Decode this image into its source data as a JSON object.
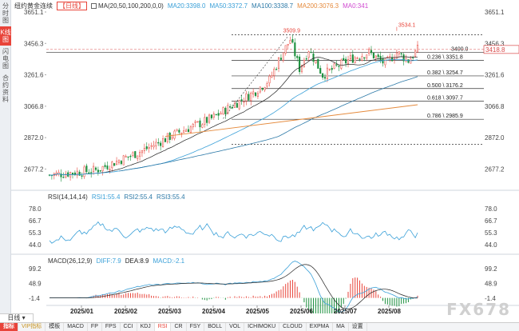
{
  "sidebar": {
    "tabs": [
      {
        "label": "分时图",
        "active": false
      },
      {
        "label": "K线图",
        "active": true
      },
      {
        "label": "闪电图",
        "active": false
      },
      {
        "label": "合约资料",
        "active": false
      }
    ]
  },
  "header": {
    "instrument": "纽约黄金连续",
    "timeframe": "日线",
    "ma_label": "MA(20,50,100,200,0,0)",
    "ma20": "MA20:3398.0",
    "ma50": "MA50:3372.7",
    "ma100": "MA100:3338.7",
    "ma200": "MA200:3076.3",
    "ma0": "MA0:341"
  },
  "colors": {
    "up": "#e8443a",
    "down": "#1a8f3c",
    "ma20": "#222222",
    "ma50": "#3aa0d8",
    "ma100": "#2e7aa8",
    "ma200": "#e58a3c",
    "ma0": "#d04ad0",
    "rsi1": "#3aa0d8",
    "rsi2": "#2e7aa8",
    "rsi3": "#2e7aa8",
    "dif": "#3aa0d8",
    "dea": "#222222",
    "price_tag": "#d94a4a",
    "fib_line": "#333333"
  },
  "price_axis": {
    "labels": [
      "3651.1",
      "3456.3",
      "3261.6",
      "3066.8",
      "2872.0",
      "2677.2"
    ],
    "current_price": "3418.8"
  },
  "annotations": {
    "high1": "3509.9",
    "high2": "3534.1",
    "level_3400": "3400.0"
  },
  "fib_levels": [
    {
      "ratio": "0.236",
      "price": "3351.8",
      "label": "0.236 \\ 3351.8"
    },
    {
      "ratio": "0.382",
      "price": "3254.7",
      "label": "0.382 \\ 3254.7"
    },
    {
      "ratio": "0.500",
      "price": "3176.2",
      "label": "0.500 \\ 3176.2"
    },
    {
      "ratio": "0.618",
      "price": "3097.7",
      "label": "0.618 \\ 3097.7"
    },
    {
      "ratio": "0.786",
      "price": "2985.9",
      "label": "0.786 \\ 2985.9"
    }
  ],
  "rsi": {
    "label": "RSI(14,14,14)",
    "rsi1": "RSI1:55.4",
    "rsi2": "RSI2:55.4",
    "rsi3": "RSI3:55.4",
    "axis_labels": [
      "78.0",
      "66.7",
      "55.3",
      "44.0"
    ]
  },
  "macd": {
    "label": "MACD(26,12,9)",
    "diff": "DIFF:7.9",
    "dea": "DEA:8.9",
    "macd": "MACD:-2.1",
    "axis_labels": [
      "99.2",
      "48.9",
      "-1.4"
    ]
  },
  "time_axis": [
    "2025/01",
    "2025/02",
    "2025/03",
    "2025/04",
    "2025/05",
    "2025/06",
    "2025/07",
    "2025/08"
  ],
  "timeframe_button": "日线",
  "bottom_tabs": [
    "指标",
    "VIP指标",
    "模板",
    "MACD",
    "FP",
    "FPS",
    "CCI",
    "KDJ",
    "RSI",
    "CR",
    "FSY",
    "BOLL",
    "VOL",
    "ICHIMOKU",
    "CLOUD",
    "EXPMA",
    "MA",
    "设置"
  ],
  "watermark": "FX678"
}
